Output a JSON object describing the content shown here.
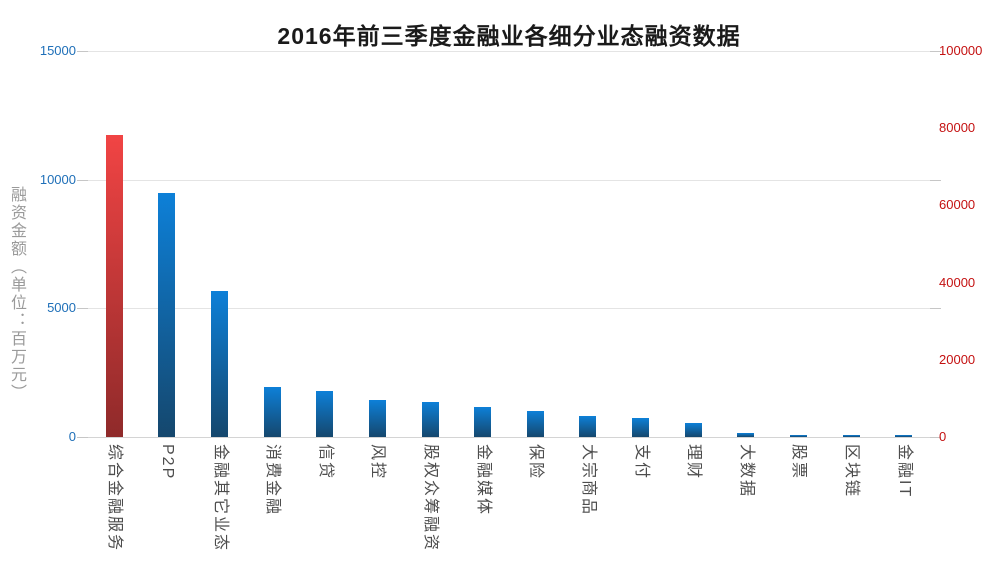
{
  "chart_data": {
    "type": "bar",
    "title": "2016年前三季度金融业各细分业态融资数据",
    "ylabel": "融资金额（单位：百万元）",
    "categories": [
      "综合金融服务",
      "P2P",
      "金融其它业态",
      "消费金融",
      "信贷",
      "风控",
      "股权众筹融资",
      "金融媒体",
      "保险",
      "大宗商品",
      "支付",
      "理财",
      "大数据",
      "股票",
      "区块链",
      "金融IT"
    ],
    "values": [
      11750,
      9470,
      5680,
      1930,
      1780,
      1430,
      1350,
      1160,
      1000,
      810,
      730,
      540,
      150,
      80,
      70,
      60
    ],
    "unit": "百万元",
    "highlight_index": 0,
    "legend": false,
    "grid": true,
    "left_axis": {
      "min": 0,
      "max": 15000,
      "tick_interval": 5000,
      "tick_labels": [
        "0",
        "5000",
        "10000",
        "15000"
      ],
      "color": "#1e6fb8"
    },
    "right_axis": {
      "min": 0,
      "max": 100000,
      "tick_interval": 20000,
      "tick_labels": [
        "0",
        "20000",
        "40000",
        "60000",
        "80000",
        "100000"
      ],
      "color": "#c41111"
    },
    "colors": {
      "highlight_bar_top": "#f14444",
      "highlight_bar_bottom": "#8f2a2a",
      "bar_top": "#0d80d8",
      "bar_bottom": "#15476d",
      "gridline": "#e4e4e4",
      "baseline": "#d4d4d4",
      "tick": "#c6c6c6",
      "category_label": "#4d4d4d",
      "title": "#1a1a1a",
      "y_axis_title": "#9a9a9a"
    }
  }
}
